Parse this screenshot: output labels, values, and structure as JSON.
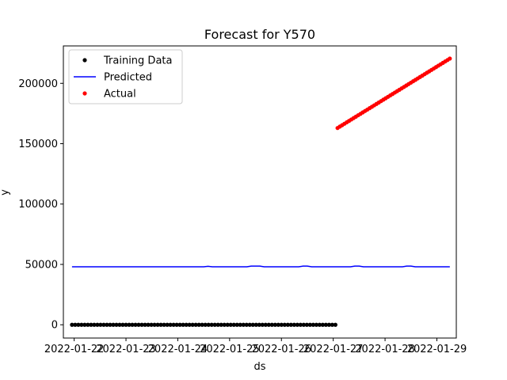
{
  "chart_data": {
    "type": "scatter",
    "title": "Forecast for Y570",
    "xlabel": "ds",
    "ylabel": "y",
    "x_ticks": [
      "2022-01-22",
      "2022-01-23",
      "2022-01-24",
      "2022-01-25",
      "2022-01-26",
      "2022-01-27",
      "2022-01-28",
      "2022-01-29"
    ],
    "x_range": [
      "2022-01-21T19:00",
      "2022-01-29T09:00"
    ],
    "y_ticks": [
      0,
      50000,
      100000,
      150000,
      200000
    ],
    "ylim": [
      -11000,
      231000
    ],
    "grid": false,
    "legend_position": "top-left",
    "series": [
      {
        "name": "Training Data",
        "kind": "scatter",
        "color": "#000000",
        "x_start": "2022-01-21T23:00",
        "x_end": "2022-01-27T01:00",
        "points": 84,
        "value": 0
      },
      {
        "name": "Predicted",
        "kind": "line",
        "color": "#0000ff",
        "points": [
          [
            "2022-01-21T23:00",
            48000
          ],
          [
            "2022-01-24T12:00",
            48000
          ],
          [
            "2022-01-24T14:00",
            48400
          ],
          [
            "2022-01-24T16:00",
            48000
          ],
          [
            "2022-01-25T08:00",
            48000
          ],
          [
            "2022-01-25T10:00",
            48600
          ],
          [
            "2022-01-25T14:00",
            48600
          ],
          [
            "2022-01-25T16:00",
            48000
          ],
          [
            "2022-01-26T08:00",
            48000
          ],
          [
            "2022-01-26T10:00",
            48600
          ],
          [
            "2022-01-26T12:00",
            48600
          ],
          [
            "2022-01-26T14:00",
            48000
          ],
          [
            "2022-01-27T08:00",
            48000
          ],
          [
            "2022-01-27T10:00",
            48600
          ],
          [
            "2022-01-27T12:00",
            48600
          ],
          [
            "2022-01-27T14:00",
            48000
          ],
          [
            "2022-01-28T08:00",
            48000
          ],
          [
            "2022-01-28T10:00",
            48600
          ],
          [
            "2022-01-28T12:00",
            48600
          ],
          [
            "2022-01-28T14:00",
            48000
          ],
          [
            "2022-01-29T06:00",
            48000
          ]
        ]
      },
      {
        "name": "Actual",
        "kind": "scatter",
        "color": "#ff0000",
        "x_start": "2022-01-27T02:00",
        "x_end": "2022-01-29T06:00",
        "points": 50,
        "y_start": 163000,
        "y_end": 220500
      }
    ]
  }
}
